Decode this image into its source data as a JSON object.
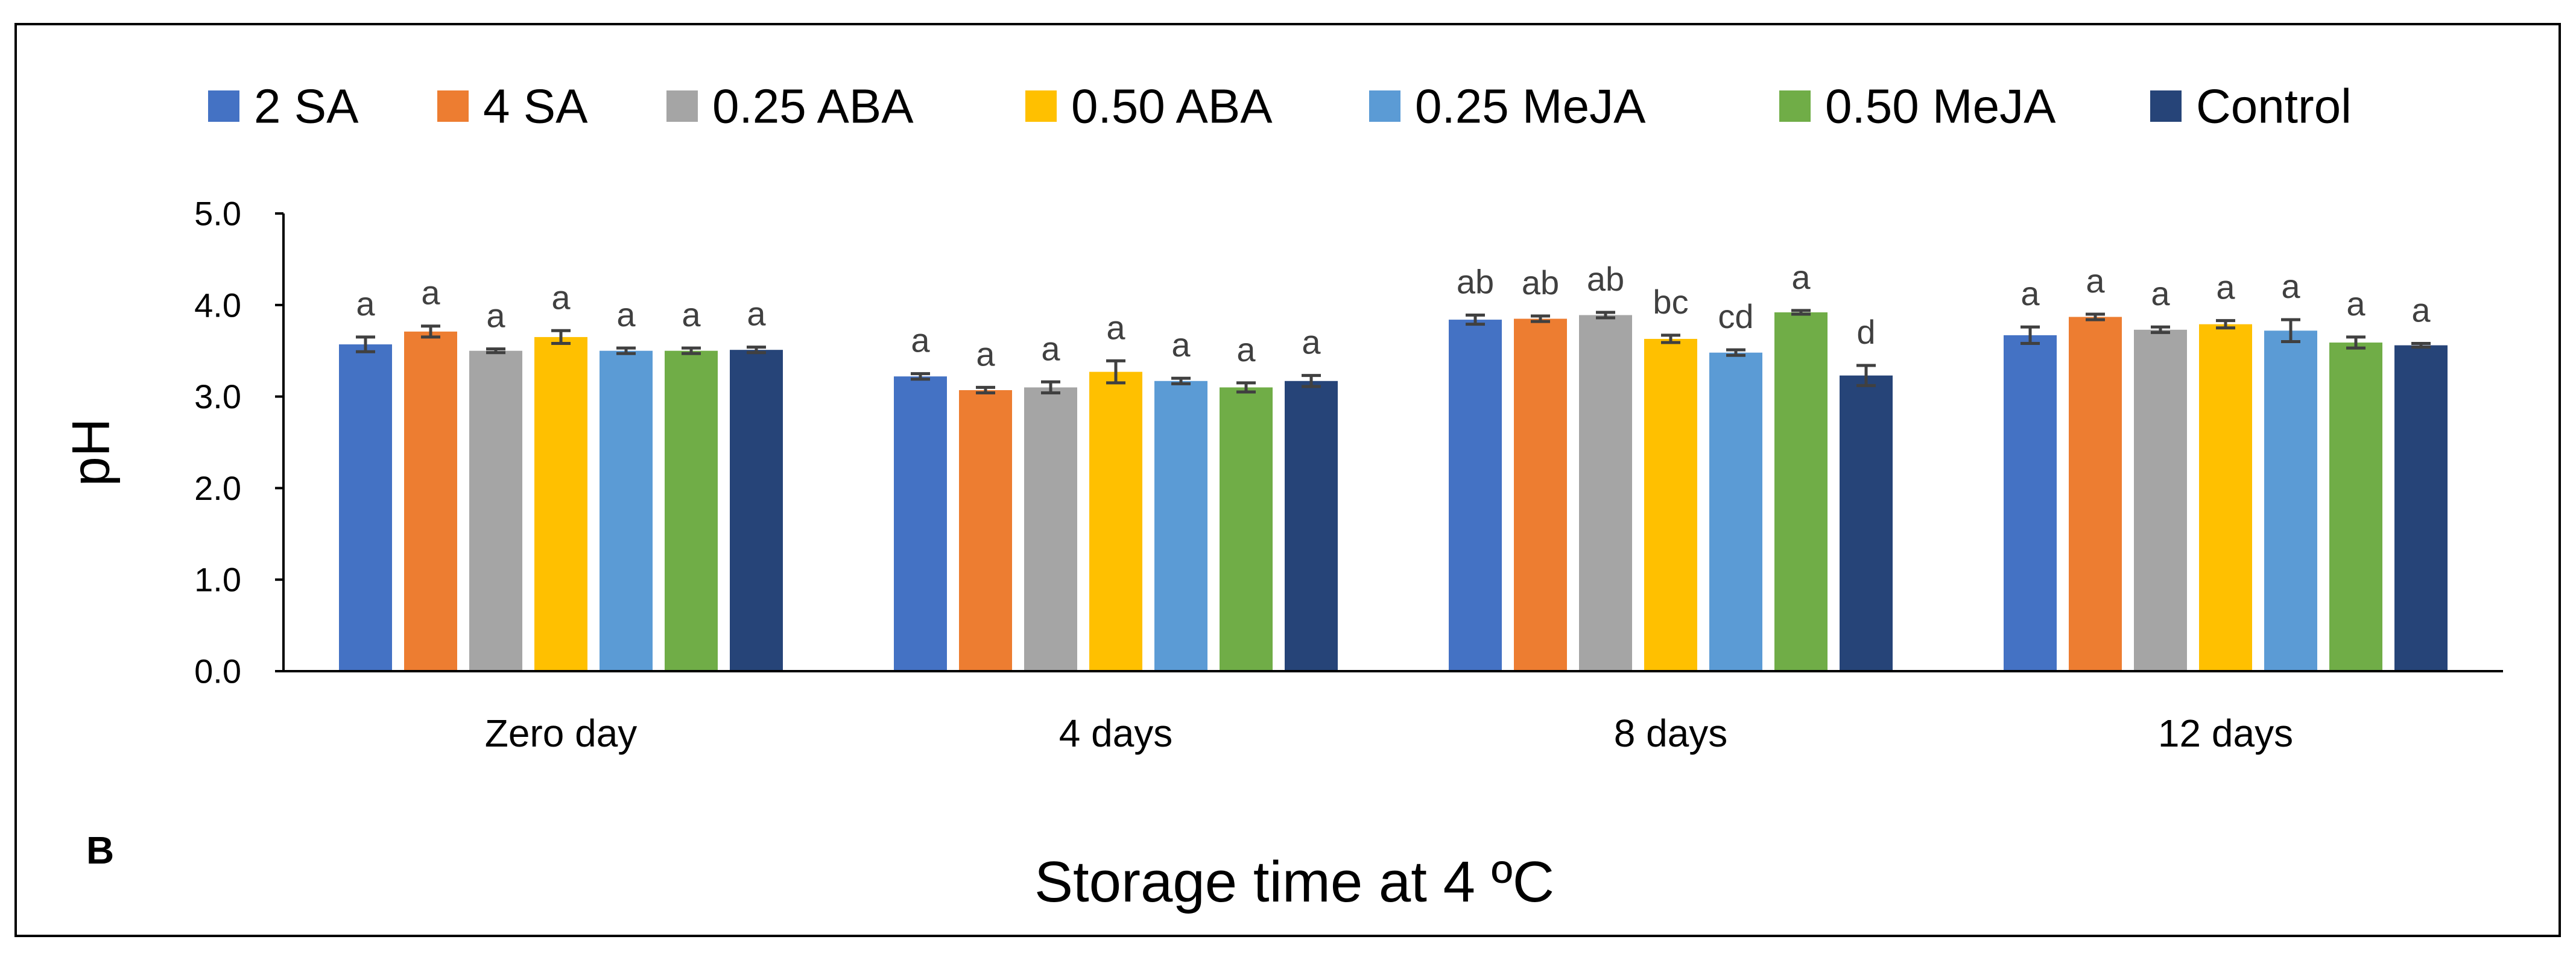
{
  "panel_label": "B",
  "chart_data": {
    "type": "bar",
    "title": "",
    "xlabel": "Storage time at 4 ºC",
    "ylabel": "pH",
    "ylim": [
      0,
      5
    ],
    "yticks": [
      "0.0",
      "1.0",
      "2.0",
      "3.0",
      "4.0",
      "5.0"
    ],
    "grid": false,
    "legend_position": "top",
    "categories": [
      "Zero day",
      "4 days",
      "8 days",
      "12 days"
    ],
    "series": [
      {
        "name": "2 SA",
        "color": "#4472C4",
        "values": [
          3.57,
          3.22,
          3.84,
          3.67
        ],
        "errors": [
          0.08,
          0.03,
          0.05,
          0.09
        ],
        "labels": [
          "a",
          "a",
          "ab",
          "a"
        ]
      },
      {
        "name": "4 SA",
        "color": "#ED7D31",
        "values": [
          3.71,
          3.07,
          3.85,
          3.87
        ],
        "errors": [
          0.06,
          0.03,
          0.03,
          0.03
        ],
        "labels": [
          "a",
          "a",
          "ab",
          "a"
        ]
      },
      {
        "name": "0.25 ABA",
        "color": "#A5A5A5",
        "values": [
          3.5,
          3.1,
          3.89,
          3.73
        ],
        "errors": [
          0.02,
          0.06,
          0.03,
          0.03
        ],
        "labels": [
          "a",
          "a",
          "ab",
          "a"
        ]
      },
      {
        "name": "0.50 ABA",
        "color": "#FFC000",
        "values": [
          3.65,
          3.27,
          3.63,
          3.79
        ],
        "errors": [
          0.07,
          0.12,
          0.04,
          0.04
        ],
        "labels": [
          "a",
          "a",
          "bc",
          "a"
        ]
      },
      {
        "name": "0.25 MeJA",
        "color": "#5B9BD5",
        "values": [
          3.5,
          3.17,
          3.48,
          3.72
        ],
        "errors": [
          0.03,
          0.03,
          0.03,
          0.12
        ],
        "labels": [
          "a",
          "a",
          "cd",
          "a"
        ]
      },
      {
        "name": "0.50 MeJA",
        "color": "#70AD47",
        "values": [
          3.5,
          3.1,
          3.92,
          3.59
        ],
        "errors": [
          0.03,
          0.05,
          0.02,
          0.06
        ],
        "labels": [
          "a",
          "a",
          "a",
          "a"
        ]
      },
      {
        "name": "Control",
        "color": "#264478",
        "values": [
          3.51,
          3.17,
          3.23,
          3.56
        ],
        "errors": [
          0.03,
          0.06,
          0.11,
          0.02
        ],
        "labels": [
          "a",
          "a",
          "d",
          "a"
        ]
      }
    ]
  }
}
